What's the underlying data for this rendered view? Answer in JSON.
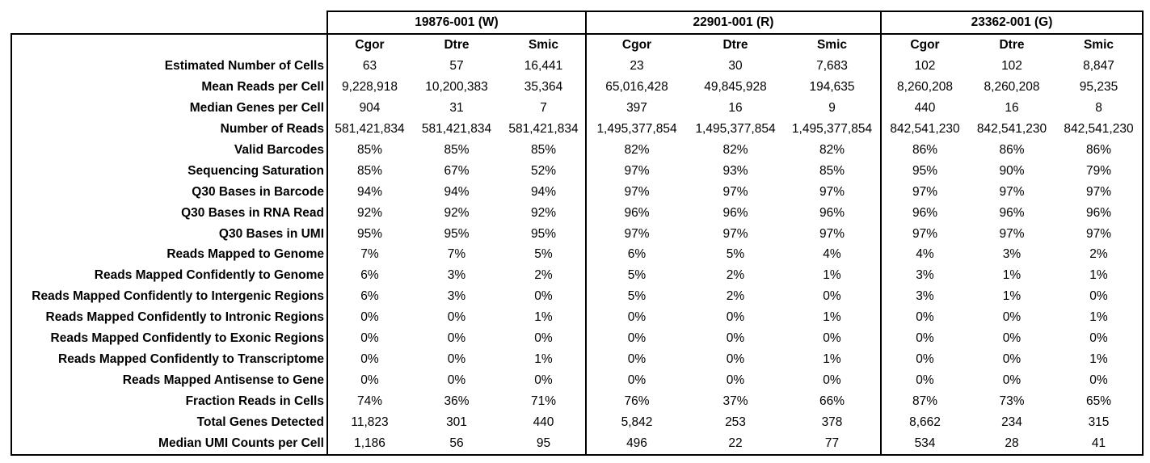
{
  "groups": [
    {
      "label": "19876-001 (W)"
    },
    {
      "label": "22901-001 (R)"
    },
    {
      "label": "23362-001 (G)"
    }
  ],
  "sub_columns": [
    "Cgor",
    "Dtre",
    "Smic",
    "Cgor",
    "Dtre",
    "Smic",
    "Cgor",
    "Dtre",
    "Smic"
  ],
  "rows": [
    {
      "label": "Estimated Number of Cells",
      "values": [
        "63",
        "57",
        "16,441",
        "23",
        "30",
        "7,683",
        "102",
        "102",
        "8,847"
      ]
    },
    {
      "label": "Mean Reads per Cell",
      "values": [
        "9,228,918",
        "10,200,383",
        "35,364",
        "65,016,428",
        "49,845,928",
        "194,635",
        "8,260,208",
        "8,260,208",
        "95,235"
      ]
    },
    {
      "label": "Median Genes per Cell",
      "values": [
        "904",
        "31",
        "7",
        "397",
        "16",
        "9",
        "440",
        "16",
        "8"
      ]
    },
    {
      "label": "Number of Reads",
      "values": [
        "581,421,834",
        "581,421,834",
        "581,421,834",
        "1,495,377,854",
        "1,495,377,854",
        "1,495,377,854",
        "842,541,230",
        "842,541,230",
        "842,541,230"
      ]
    },
    {
      "label": "Valid Barcodes",
      "values": [
        "85%",
        "85%",
        "85%",
        "82%",
        "82%",
        "82%",
        "86%",
        "86%",
        "86%"
      ]
    },
    {
      "label": "Sequencing Saturation",
      "values": [
        "85%",
        "67%",
        "52%",
        "97%",
        "93%",
        "85%",
        "95%",
        "90%",
        "79%"
      ]
    },
    {
      "label": "Q30 Bases in Barcode",
      "values": [
        "94%",
        "94%",
        "94%",
        "97%",
        "97%",
        "97%",
        "97%",
        "97%",
        "97%"
      ]
    },
    {
      "label": "Q30 Bases in RNA Read",
      "values": [
        "92%",
        "92%",
        "92%",
        "96%",
        "96%",
        "96%",
        "96%",
        "96%",
        "96%"
      ]
    },
    {
      "label": "Q30 Bases in UMI",
      "values": [
        "95%",
        "95%",
        "95%",
        "97%",
        "97%",
        "97%",
        "97%",
        "97%",
        "97%"
      ]
    },
    {
      "label": "Reads Mapped to Genome",
      "values": [
        "7%",
        "7%",
        "5%",
        "6%",
        "5%",
        "4%",
        "4%",
        "3%",
        "2%"
      ]
    },
    {
      "label": "Reads Mapped Confidently to Genome",
      "values": [
        "6%",
        "3%",
        "2%",
        "5%",
        "2%",
        "1%",
        "3%",
        "1%",
        "1%"
      ]
    },
    {
      "label": "Reads Mapped Confidently to Intergenic Regions",
      "values": [
        "6%",
        "3%",
        "0%",
        "5%",
        "2%",
        "0%",
        "3%",
        "1%",
        "0%"
      ]
    },
    {
      "label": "Reads Mapped Confidently to Intronic Regions",
      "values": [
        "0%",
        "0%",
        "1%",
        "0%",
        "0%",
        "1%",
        "0%",
        "0%",
        "1%"
      ]
    },
    {
      "label": "Reads Mapped Confidently to Exonic Regions",
      "values": [
        "0%",
        "0%",
        "0%",
        "0%",
        "0%",
        "0%",
        "0%",
        "0%",
        "0%"
      ]
    },
    {
      "label": "Reads Mapped Confidently to Transcriptome",
      "values": [
        "0%",
        "0%",
        "1%",
        "0%",
        "0%",
        "1%",
        "0%",
        "0%",
        "1%"
      ]
    },
    {
      "label": "Reads Mapped Antisense to Gene",
      "values": [
        "0%",
        "0%",
        "0%",
        "0%",
        "0%",
        "0%",
        "0%",
        "0%",
        "0%"
      ]
    },
    {
      "label": "Fraction Reads in Cells",
      "values": [
        "74%",
        "36%",
        "71%",
        "76%",
        "37%",
        "66%",
        "87%",
        "73%",
        "65%"
      ]
    },
    {
      "label": "Total Genes Detected",
      "values": [
        "11,823",
        "301",
        "440",
        "5,842",
        "253",
        "378",
        "8,662",
        "234",
        "315"
      ]
    },
    {
      "label": "Median UMI Counts per Cell",
      "values": [
        "1,186",
        "56",
        "95",
        "496",
        "22",
        "77",
        "534",
        "28",
        "41"
      ]
    }
  ]
}
